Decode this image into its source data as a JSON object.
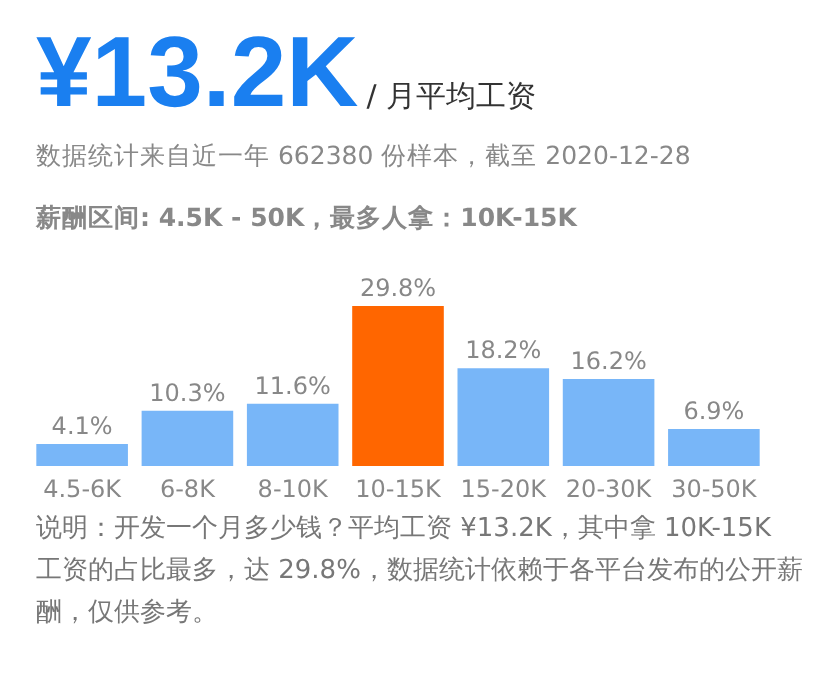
{
  "chart_data": {
    "type": "bar",
    "title": "¥13.2K",
    "subtitle": "/ 月平均工资",
    "annotations": [
      "数据统计来自近一年 662380 份样本，截至 2020-12-28",
      "薪酬区间: 4.5K - 50K，最多人拿：10K-15K",
      "说明：开发一个月多少钱？平均工资 ¥13.2K，其中拿 10K-15K 工资的占比最多，达 29.8%，数据统计依赖于各平台发布的公开薪酬，仅供参考。"
    ],
    "categories": [
      "4.5-6K",
      "6-8K",
      "8-10K",
      "10-15K",
      "15-20K",
      "20-30K",
      "30-50K"
    ],
    "values": [
      4.1,
      10.3,
      11.6,
      29.8,
      18.2,
      16.2,
      6.9
    ],
    "colors": [
      "#78b6f8",
      "#78b6f8",
      "#78b6f8",
      "#ff6600",
      "#78b6f8",
      "#78b6f8",
      "#78b6f8"
    ],
    "value_labels": [
      "4.1%",
      "10.3%",
      "11.6%",
      "29.8%",
      "18.2%",
      "16.2%",
      "6.9%"
    ]
  }
}
